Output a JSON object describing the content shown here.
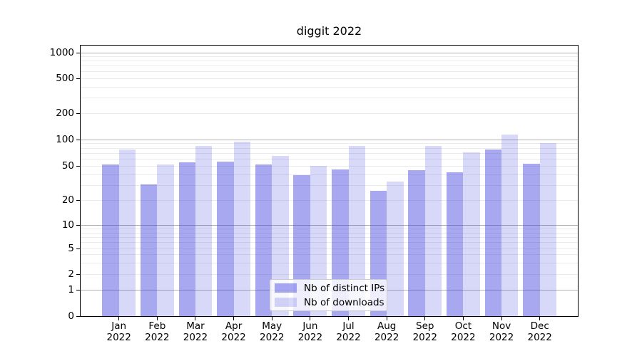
{
  "chart_data": {
    "type": "bar",
    "title": "diggit 2022",
    "scale": "symlog",
    "grid": true,
    "legend_position": "lower center",
    "categories": [
      "Jan 2022",
      "Feb 2022",
      "Mar 2022",
      "Apr 2022",
      "May 2022",
      "Jun 2022",
      "Jul 2022",
      "Aug 2022",
      "Sep 2022",
      "Oct 2022",
      "Nov 2022",
      "Dec 2022"
    ],
    "month_labels": [
      "Jan",
      "Feb",
      "Mar",
      "Apr",
      "May",
      "Jun",
      "Jul",
      "Aug",
      "Sep",
      "Oct",
      "Nov",
      "Dec"
    ],
    "year_label": "2022",
    "series": [
      {
        "name": "Nb of distinct IPs",
        "color": "rgba(62,62,224,0.45)",
        "values": [
          51,
          30,
          54,
          55,
          51,
          38,
          45,
          25,
          44,
          41,
          75,
          52
        ]
      },
      {
        "name": "Nb of downloads",
        "color": "rgba(62,62,224,0.20)",
        "values": [
          75,
          51,
          83,
          92,
          64,
          49,
          83,
          32,
          83,
          70,
          110,
          89
        ]
      }
    ],
    "y_ticks": [
      0,
      1,
      2,
      5,
      10,
      20,
      50,
      100,
      200,
      500,
      1000
    ],
    "ylim": [
      0,
      1200
    ]
  },
  "colors": {
    "major_grid": "#b0b0b0",
    "minor_grid": "#ebebeb",
    "axis": "#000000",
    "legend_border": "#cccccc",
    "legend_bg": "rgba(255,255,255,0.8)"
  }
}
